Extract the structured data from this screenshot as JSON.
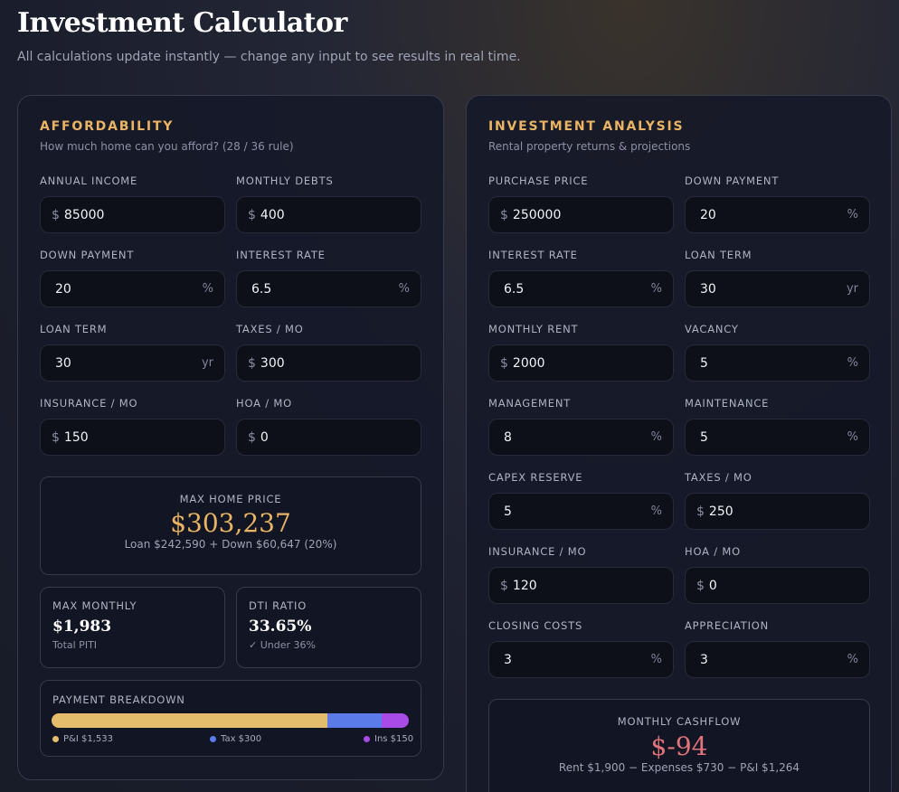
{
  "header": {
    "title": "Investment Calculator",
    "subtitle": "All calculations update instantly — change any input to see results in real time."
  },
  "affordability": {
    "title": "AFFORDABILITY",
    "subtitle": "How much home can you afford? (28 / 36 rule)",
    "fields": {
      "annual_income": {
        "label": "ANNUAL INCOME",
        "prefix": "$",
        "value": "85000"
      },
      "monthly_debts": {
        "label": "MONTHLY DEBTS",
        "prefix": "$",
        "value": "400"
      },
      "down_payment": {
        "label": "DOWN PAYMENT",
        "value": "20",
        "suffix": "%"
      },
      "interest_rate": {
        "label": "INTEREST RATE",
        "value": "6.5",
        "suffix": "%"
      },
      "loan_term": {
        "label": "LOAN TERM",
        "value": "30",
        "suffix": "yr"
      },
      "taxes": {
        "label": "TAXES / MO",
        "prefix": "$",
        "value": "300"
      },
      "insurance": {
        "label": "INSURANCE / MO",
        "prefix": "$",
        "value": "150"
      },
      "hoa": {
        "label": "HOA / MO",
        "prefix": "$",
        "value": "0"
      }
    },
    "max_home": {
      "label": "MAX HOME PRICE",
      "value": "$303,237",
      "note": "Loan $242,590 + Down $60,647 (20%)"
    },
    "max_monthly": {
      "label": "MAX MONTHLY",
      "value": "$1,983",
      "note": "Total PITI"
    },
    "dti": {
      "label": "DTI RATIO",
      "value": "33.65%",
      "note": "✓ Under 36%"
    },
    "breakdown": {
      "label": "PAYMENT BREAKDOWN",
      "segments": [
        {
          "name": "P&I",
          "legend": "P&I $1,533",
          "amount": 1533,
          "color": "#e3bd6c"
        },
        {
          "name": "Tax",
          "legend": "Tax $300",
          "amount": 300,
          "color": "#5b7ce8"
        },
        {
          "name": "Ins",
          "legend": "Ins $150",
          "amount": 150,
          "color": "#a94be6"
        }
      ]
    }
  },
  "investment": {
    "title": "INVESTMENT ANALYSIS",
    "subtitle": "Rental property returns & projections",
    "fields": {
      "purchase_price": {
        "label": "PURCHASE PRICE",
        "prefix": "$",
        "value": "250000"
      },
      "down_payment": {
        "label": "DOWN PAYMENT",
        "value": "20",
        "suffix": "%"
      },
      "interest_rate": {
        "label": "INTEREST RATE",
        "value": "6.5",
        "suffix": "%"
      },
      "loan_term": {
        "label": "LOAN TERM",
        "value": "30",
        "suffix": "yr"
      },
      "monthly_rent": {
        "label": "MONTHLY RENT",
        "prefix": "$",
        "value": "2000"
      },
      "vacancy": {
        "label": "VACANCY",
        "value": "5",
        "suffix": "%"
      },
      "management": {
        "label": "MANAGEMENT",
        "value": "8",
        "suffix": "%"
      },
      "maintenance": {
        "label": "MAINTENANCE",
        "value": "5",
        "suffix": "%"
      },
      "capex": {
        "label": "CAPEX RESERVE",
        "value": "5",
        "suffix": "%"
      },
      "taxes": {
        "label": "TAXES / MO",
        "prefix": "$",
        "value": "250"
      },
      "insurance": {
        "label": "INSURANCE / MO",
        "prefix": "$",
        "value": "120"
      },
      "hoa": {
        "label": "HOA / MO",
        "prefix": "$",
        "value": "0"
      },
      "closing_costs": {
        "label": "CLOSING COSTS",
        "value": "3",
        "suffix": "%"
      },
      "appreciation": {
        "label": "APPRECIATION",
        "value": "3",
        "suffix": "%"
      }
    },
    "cashflow": {
      "label": "MONTHLY CASHFLOW",
      "value": "$-94",
      "note": "Rent $1,900 − Expenses $730 − P&I $1,264"
    }
  }
}
